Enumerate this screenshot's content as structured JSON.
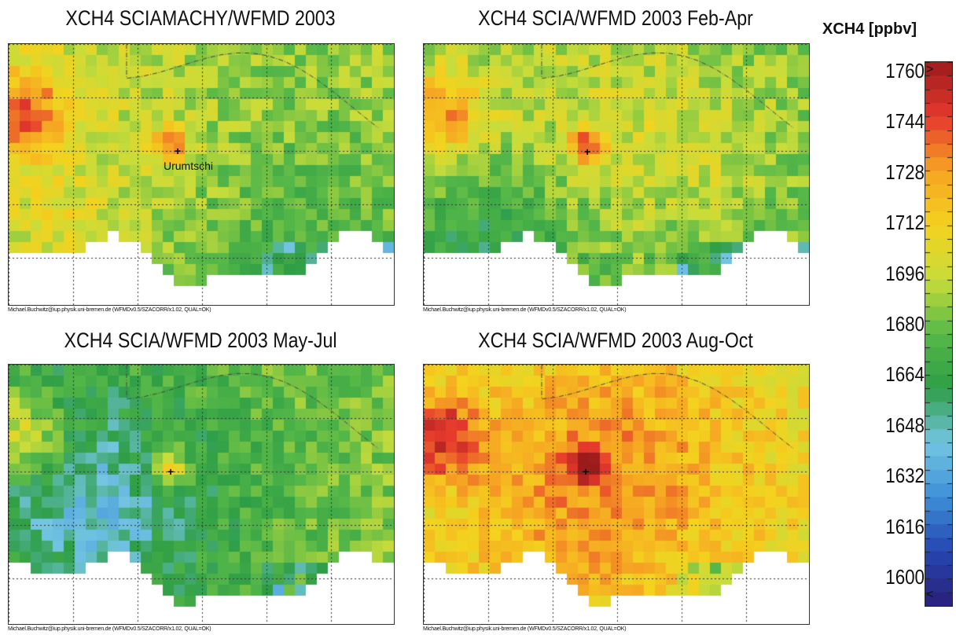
{
  "panels": [
    {
      "title": "XCH4 SCIAMACHY/WFMD 2003",
      "credit": "Michael.Buchwitz@iup.physik.uni-bremen.de (WFMDv0.5/SZACORR/x1.02, QUAL=OK)",
      "city": "Urumtschi",
      "seed": 11,
      "offset": 0
    },
    {
      "title": "XCH4 SCIA/WFMD 2003 Feb-Apr",
      "credit": "Michael.Buchwitz@iup.physik.uni-bremen.de (WFMDv0.5/SZACORR/x1.02, QUAL=OK)",
      "city": "",
      "seed": 23,
      "offset": -4
    },
    {
      "title": "XCH4 SCIA/WFMD 2003 May-Jul",
      "credit": "Michael.Buchwitz@iup.physik.uni-bremen.de (WFMDv0.5/SZACORR/x1.02, QUAL=OK)",
      "city": "",
      "seed": 37,
      "offset": -3
    },
    {
      "title": "XCH4 SCIA/WFMD 2003 Aug-Oct",
      "credit": "Michael.Buchwitz@iup.physik.uni-bremen.de (WFMDv0.5/SZACORR/x1.02, QUAL=OK)",
      "city": "",
      "seed": 51,
      "offset": 14
    }
  ],
  "legend": {
    "title": "XCH4 [ppbv]",
    "ticks": [
      "1760",
      "1744",
      "1728",
      "1712",
      "1696",
      "1680",
      "1664",
      "1648",
      "1632",
      "1616",
      "1600"
    ],
    "min": 1600,
    "max": 1760,
    "top_mark": ">",
    "bottom_mark": "<"
  },
  "colors": {
    "scale": [
      "#2a1f7a",
      "#2546b0",
      "#3d8fd8",
      "#74c6e2",
      "#2e9e46",
      "#56b848",
      "#c8dc3a",
      "#f4d21e",
      "#f6a423",
      "#e5392d",
      "#9b1b1b"
    ],
    "no_data": "#ffffff"
  }
}
